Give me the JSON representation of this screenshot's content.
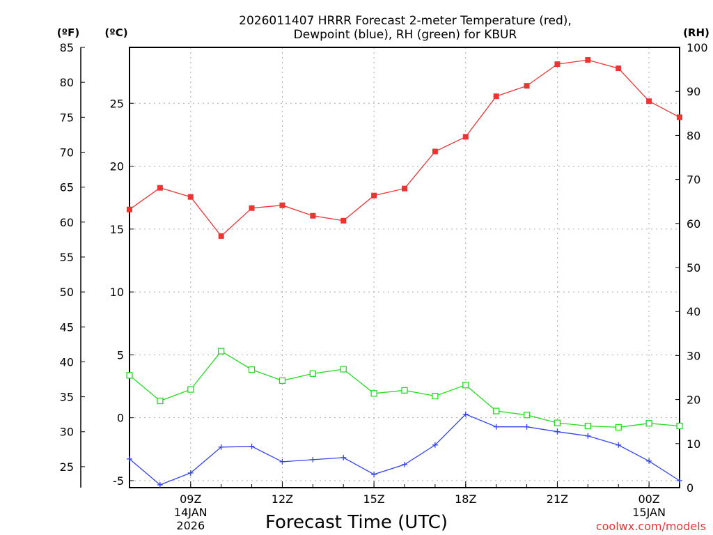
{
  "chart_data": {
    "type": "line",
    "title_line1": "2026011407 HRRR Forecast 2-meter Temperature (red),",
    "title_line2": "Dewpoint (blue), RH (green) for KBUR",
    "xlabel": "Forecast Time (UTC)",
    "unit_f": "(ºF)",
    "unit_c": "(ºC)",
    "unit_rh": "(RH)",
    "watermark": "coolwx.com/models",
    "xlim": [
      7,
      25
    ],
    "x_ticks": [
      {
        "x": 9,
        "label": "09Z",
        "sub1": "14JAN",
        "sub2": "2026"
      },
      {
        "x": 12,
        "label": "12Z",
        "sub1": "",
        "sub2": ""
      },
      {
        "x": 15,
        "label": "15Z",
        "sub1": "",
        "sub2": ""
      },
      {
        "x": 18,
        "label": "18Z",
        "sub1": "",
        "sub2": ""
      },
      {
        "x": 21,
        "label": "21Z",
        "sub1": "",
        "sub2": ""
      },
      {
        "x": 24,
        "label": "00Z",
        "sub1": "15JAN",
        "sub2": ""
      }
    ],
    "y_left_f": {
      "lim": [
        22,
        85
      ],
      "ticks": [
        25,
        30,
        35,
        40,
        45,
        50,
        55,
        60,
        65,
        70,
        75,
        80,
        85
      ]
    },
    "y_left_c": {
      "ticks": [
        -5,
        0,
        5,
        10,
        15,
        20,
        25
      ]
    },
    "y_right_rh": {
      "lim": [
        0,
        100
      ],
      "ticks": [
        0,
        10,
        20,
        30,
        40,
        50,
        60,
        70,
        80,
        90,
        100
      ]
    },
    "x": [
      7,
      8,
      9,
      10,
      11,
      12,
      13,
      14,
      15,
      16,
      17,
      18,
      19,
      20,
      21,
      22,
      23,
      24,
      25
    ],
    "series": [
      {
        "name": "Temperature",
        "unit": "F",
        "color": "#ee3333",
        "marker": "filled-square",
        "values": [
          61.8,
          64.9,
          63.6,
          58.0,
          62.0,
          62.4,
          60.9,
          60.2,
          63.8,
          64.8,
          70.1,
          72.2,
          78.0,
          79.5,
          82.6,
          83.2,
          82.0,
          77.3,
          75.0
        ]
      },
      {
        "name": "Dewpoint",
        "unit": "F",
        "color": "#3344ee",
        "marker": "plus",
        "values": [
          26.1,
          22.4,
          24.1,
          27.8,
          27.9,
          25.7,
          26.0,
          26.3,
          23.9,
          25.3,
          28.1,
          32.5,
          30.7,
          30.7,
          30.0,
          29.4,
          28.1,
          25.8,
          23.0
        ]
      },
      {
        "name": "RH",
        "unit": "%",
        "color": "#22dd22",
        "marker": "open-square",
        "values": [
          25.5,
          19.7,
          22.3,
          31.0,
          26.8,
          24.3,
          25.9,
          26.9,
          21.4,
          22.1,
          20.8,
          23.3,
          17.4,
          16.5,
          14.7,
          14.0,
          13.7,
          14.6,
          14.0
        ]
      }
    ]
  }
}
